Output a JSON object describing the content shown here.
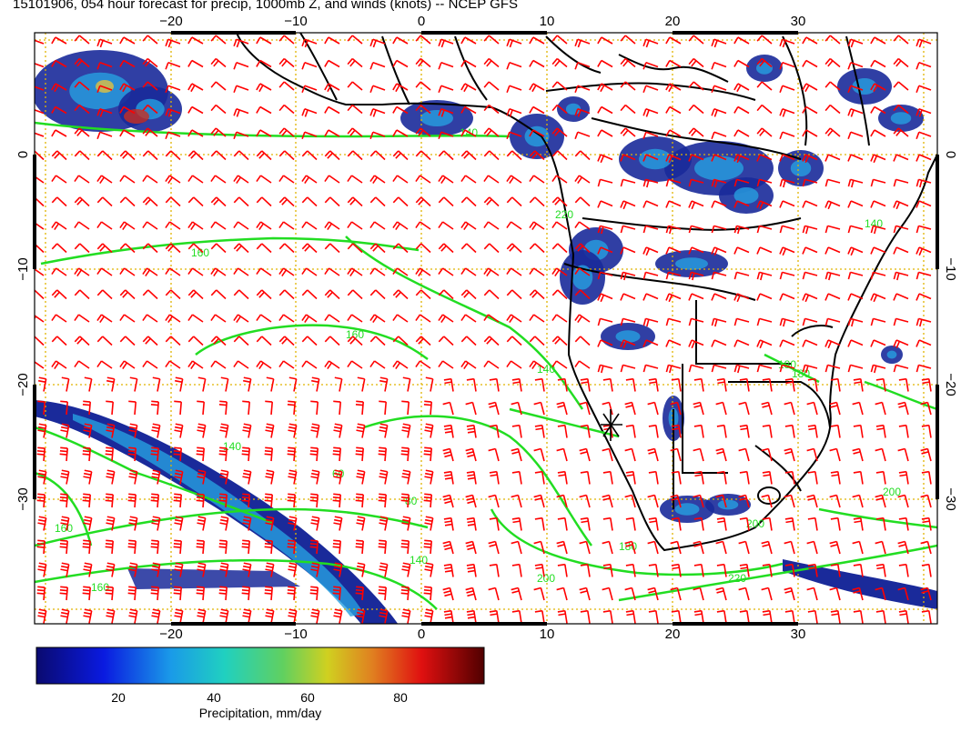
{
  "title": "15101906, 054 hour forecast for precip, 1000mb Z, and winds (knots) -- NCEP GFS",
  "axes": {
    "lon_labels": [
      "−20",
      "−10",
      "0",
      "10",
      "20",
      "30"
    ],
    "lat_labels": [
      "0",
      "−10",
      "−20",
      "−30"
    ]
  },
  "contours": [
    {
      "label": "160"
    },
    {
      "label": "160"
    },
    {
      "label": "140"
    },
    {
      "label": "140"
    },
    {
      "label": "60"
    },
    {
      "label": "80"
    },
    {
      "label": "180"
    },
    {
      "label": "200"
    },
    {
      "label": "220"
    },
    {
      "label": "140"
    },
    {
      "label": "160"
    },
    {
      "label": "180"
    },
    {
      "label": "200"
    },
    {
      "label": "220"
    },
    {
      "label": "140"
    },
    {
      "label": "160"
    },
    {
      "label": "180"
    },
    {
      "label": "140"
    },
    {
      "label": "200"
    }
  ],
  "colorbar": {
    "label": "Precipitation, mm/day",
    "ticks": [
      "20",
      "40",
      "60",
      "80"
    ]
  },
  "colors": {
    "frame": "#000000",
    "grid": "#e0b400",
    "contour": "#22dd22",
    "wind": "#ff0000",
    "coast": "#000000",
    "precip_low": "#1a2a9a",
    "precip_mid": "#27a0e0",
    "precip_high": "#c83020"
  }
}
